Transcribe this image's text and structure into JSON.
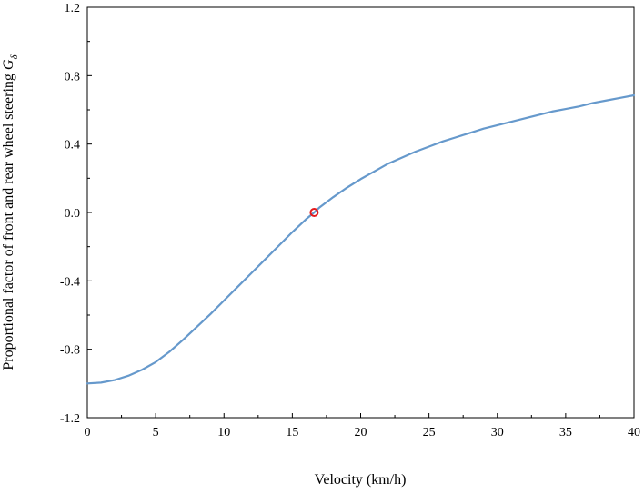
{
  "chart_data": {
    "type": "line",
    "xlabel": "Velocity (km/h)",
    "ylabel": "Proportional factor of front and rear wheel steering",
    "ylabel_symbol": "G",
    "ylabel_subscript": "δ",
    "xlim": [
      0,
      40
    ],
    "ylim": [
      -1.2,
      1.2
    ],
    "xticks": [
      0,
      5,
      10,
      15,
      20,
      25,
      30,
      35,
      40
    ],
    "yticks": [
      1.2,
      0.8,
      0.4,
      0.0,
      -0.4,
      -0.8,
      -1.2
    ],
    "ytick_labels": [
      "1.2",
      "0.8",
      "0.4",
      "0.0",
      "-0.4",
      "-0.8",
      "-1.2"
    ],
    "grid": false,
    "line_color": "#6699cc",
    "marker_color": "#e41a1c",
    "series": [
      {
        "x": [
          0,
          1,
          2,
          3,
          4,
          5,
          6,
          7,
          8,
          9,
          10,
          11,
          12,
          13,
          14,
          15,
          16,
          16.6,
          17,
          18,
          19,
          20,
          21,
          22,
          23,
          24,
          25,
          26,
          27,
          28,
          29,
          30,
          31,
          32,
          33,
          34,
          35,
          36,
          37,
          38,
          39,
          40
        ],
        "y": [
          -1.0,
          -0.995,
          -0.98,
          -0.955,
          -0.92,
          -0.875,
          -0.815,
          -0.745,
          -0.67,
          -0.595,
          -0.515,
          -0.435,
          -0.355,
          -0.275,
          -0.195,
          -0.115,
          -0.04,
          0.0,
          0.03,
          0.09,
          0.145,
          0.195,
          0.24,
          0.285,
          0.32,
          0.355,
          0.385,
          0.415,
          0.44,
          0.465,
          0.49,
          0.51,
          0.53,
          0.55,
          0.57,
          0.59,
          0.605,
          0.62,
          0.64,
          0.655,
          0.67,
          0.685
        ]
      }
    ],
    "marker": {
      "x": 16.6,
      "y": 0.0
    }
  }
}
